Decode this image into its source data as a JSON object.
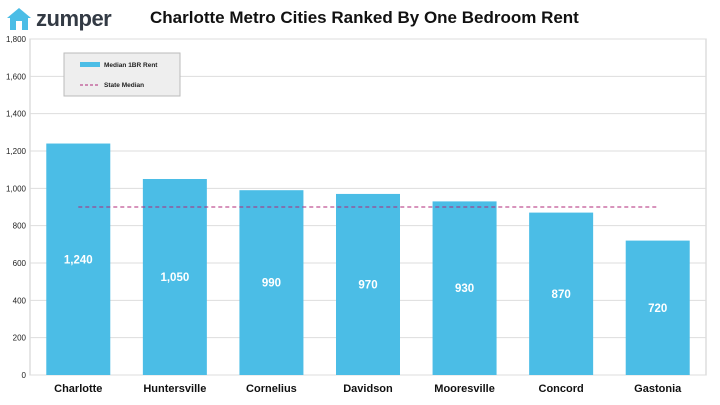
{
  "header": {
    "logo_text": "zumper",
    "title": "Charlotte Metro Cities Ranked By One Bedroom Rent"
  },
  "colors": {
    "bar": "#4bbde6",
    "state_median_line": "#b0287a",
    "logo_icon": "#4bbde6",
    "gridline": "#dddddd",
    "legend_bg": "#eeeeee"
  },
  "icons": {
    "logo": "house-icon"
  },
  "chart_data": {
    "type": "bar",
    "title": "Charlotte Metro Cities Ranked By One Bedroom Rent",
    "xlabel": "",
    "ylabel": "",
    "categories": [
      "Charlotte",
      "Huntersville",
      "Cornelius",
      "Davidson",
      "Mooresville",
      "Concord",
      "Gastonia"
    ],
    "series": [
      {
        "name": "Median 1BR Rent",
        "values": [
          1240,
          1050,
          990,
          970,
          930,
          870,
          720
        ],
        "labels": [
          "1,240",
          "1,050",
          "990",
          "970",
          "930",
          "870",
          "720"
        ]
      }
    ],
    "reference_line": {
      "name": "State Median",
      "value": 900,
      "style": "dashed"
    },
    "ylim": [
      0,
      1800
    ],
    "yticks": [
      0,
      200,
      400,
      600,
      800,
      1000,
      1200,
      1400,
      1600,
      1800
    ],
    "ytick_labels": [
      "0",
      "200",
      "400",
      "600",
      "800",
      "1,000",
      "1,200",
      "1,400",
      "1,600",
      "1,800"
    ],
    "grid": true,
    "legend_position": "top-left",
    "legend": [
      "Median 1BR Rent",
      "State Median"
    ]
  }
}
